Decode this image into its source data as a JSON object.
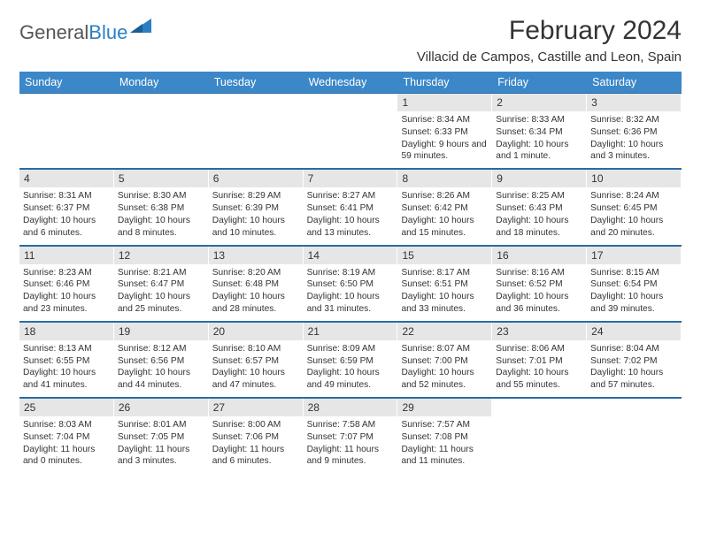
{
  "logo": {
    "part1": "General",
    "part2": "Blue"
  },
  "title": "February 2024",
  "subtitle": "Villacid de Campos, Castille and Leon, Spain",
  "colors": {
    "header_bg": "#3b87c8",
    "header_border": "#2a6ba3",
    "daynum_bg": "#e6e6e6",
    "logo_gray": "#555555",
    "logo_blue": "#2b7fc3"
  },
  "day_labels": [
    "Sunday",
    "Monday",
    "Tuesday",
    "Wednesday",
    "Thursday",
    "Friday",
    "Saturday"
  ],
  "weeks": [
    [
      null,
      null,
      null,
      null,
      {
        "n": "1",
        "sunrise": "8:34 AM",
        "sunset": "6:33 PM",
        "daylight": "9 hours and 59 minutes."
      },
      {
        "n": "2",
        "sunrise": "8:33 AM",
        "sunset": "6:34 PM",
        "daylight": "10 hours and 1 minute."
      },
      {
        "n": "3",
        "sunrise": "8:32 AM",
        "sunset": "6:36 PM",
        "daylight": "10 hours and 3 minutes."
      }
    ],
    [
      {
        "n": "4",
        "sunrise": "8:31 AM",
        "sunset": "6:37 PM",
        "daylight": "10 hours and 6 minutes."
      },
      {
        "n": "5",
        "sunrise": "8:30 AM",
        "sunset": "6:38 PM",
        "daylight": "10 hours and 8 minutes."
      },
      {
        "n": "6",
        "sunrise": "8:29 AM",
        "sunset": "6:39 PM",
        "daylight": "10 hours and 10 minutes."
      },
      {
        "n": "7",
        "sunrise": "8:27 AM",
        "sunset": "6:41 PM",
        "daylight": "10 hours and 13 minutes."
      },
      {
        "n": "8",
        "sunrise": "8:26 AM",
        "sunset": "6:42 PM",
        "daylight": "10 hours and 15 minutes."
      },
      {
        "n": "9",
        "sunrise": "8:25 AM",
        "sunset": "6:43 PM",
        "daylight": "10 hours and 18 minutes."
      },
      {
        "n": "10",
        "sunrise": "8:24 AM",
        "sunset": "6:45 PM",
        "daylight": "10 hours and 20 minutes."
      }
    ],
    [
      {
        "n": "11",
        "sunrise": "8:23 AM",
        "sunset": "6:46 PM",
        "daylight": "10 hours and 23 minutes."
      },
      {
        "n": "12",
        "sunrise": "8:21 AM",
        "sunset": "6:47 PM",
        "daylight": "10 hours and 25 minutes."
      },
      {
        "n": "13",
        "sunrise": "8:20 AM",
        "sunset": "6:48 PM",
        "daylight": "10 hours and 28 minutes."
      },
      {
        "n": "14",
        "sunrise": "8:19 AM",
        "sunset": "6:50 PM",
        "daylight": "10 hours and 31 minutes."
      },
      {
        "n": "15",
        "sunrise": "8:17 AM",
        "sunset": "6:51 PM",
        "daylight": "10 hours and 33 minutes."
      },
      {
        "n": "16",
        "sunrise": "8:16 AM",
        "sunset": "6:52 PM",
        "daylight": "10 hours and 36 minutes."
      },
      {
        "n": "17",
        "sunrise": "8:15 AM",
        "sunset": "6:54 PM",
        "daylight": "10 hours and 39 minutes."
      }
    ],
    [
      {
        "n": "18",
        "sunrise": "8:13 AM",
        "sunset": "6:55 PM",
        "daylight": "10 hours and 41 minutes."
      },
      {
        "n": "19",
        "sunrise": "8:12 AM",
        "sunset": "6:56 PM",
        "daylight": "10 hours and 44 minutes."
      },
      {
        "n": "20",
        "sunrise": "8:10 AM",
        "sunset": "6:57 PM",
        "daylight": "10 hours and 47 minutes."
      },
      {
        "n": "21",
        "sunrise": "8:09 AM",
        "sunset": "6:59 PM",
        "daylight": "10 hours and 49 minutes."
      },
      {
        "n": "22",
        "sunrise": "8:07 AM",
        "sunset": "7:00 PM",
        "daylight": "10 hours and 52 minutes."
      },
      {
        "n": "23",
        "sunrise": "8:06 AM",
        "sunset": "7:01 PM",
        "daylight": "10 hours and 55 minutes."
      },
      {
        "n": "24",
        "sunrise": "8:04 AM",
        "sunset": "7:02 PM",
        "daylight": "10 hours and 57 minutes."
      }
    ],
    [
      {
        "n": "25",
        "sunrise": "8:03 AM",
        "sunset": "7:04 PM",
        "daylight": "11 hours and 0 minutes."
      },
      {
        "n": "26",
        "sunrise": "8:01 AM",
        "sunset": "7:05 PM",
        "daylight": "11 hours and 3 minutes."
      },
      {
        "n": "27",
        "sunrise": "8:00 AM",
        "sunset": "7:06 PM",
        "daylight": "11 hours and 6 minutes."
      },
      {
        "n": "28",
        "sunrise": "7:58 AM",
        "sunset": "7:07 PM",
        "daylight": "11 hours and 9 minutes."
      },
      {
        "n": "29",
        "sunrise": "7:57 AM",
        "sunset": "7:08 PM",
        "daylight": "11 hours and 11 minutes."
      },
      null,
      null
    ]
  ],
  "labels": {
    "sunrise": "Sunrise: ",
    "sunset": "Sunset: ",
    "daylight": "Daylight: "
  }
}
